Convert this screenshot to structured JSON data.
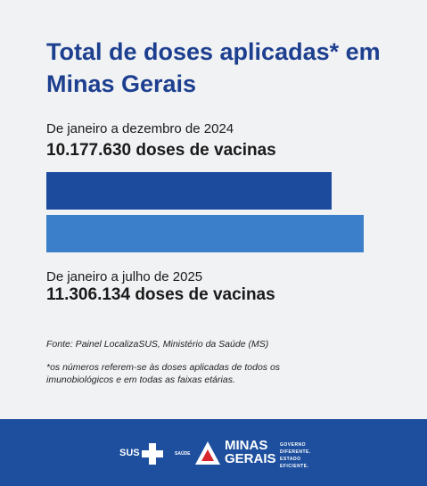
{
  "chart_data": {
    "type": "bar",
    "orientation": "horizontal",
    "title": "Total de doses aplicadas* em Minas Gerais",
    "categories": [
      "De janeiro a dezembro de 2024",
      "De janeiro a julho de 2025"
    ],
    "values": [
      10177630,
      11306134
    ],
    "value_labels": [
      "10.177.630 doses de vacinas",
      "11.306.134 doses de vacinas"
    ],
    "colors": [
      "#1c4a9c",
      "#3b7fcb"
    ],
    "source": "Fonte: Painel LocalizaSUS, Ministério da Saúde (MS)",
    "note": "*os números referem-se às doses aplicadas de todos os imunobiológicos e em todas as faixas etárias."
  },
  "footer": {
    "sus": "SUS",
    "saude": "SAÚDE",
    "brand": "MINAS GERAIS",
    "tagline": "GOVERNO DIFERENTE. ESTADO EFICIENTE."
  }
}
